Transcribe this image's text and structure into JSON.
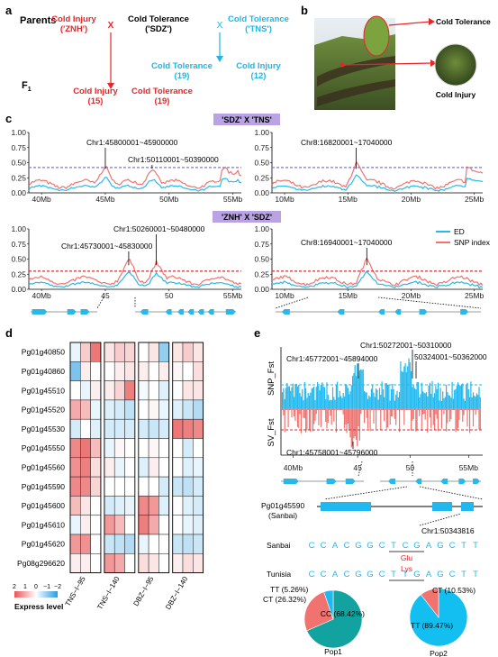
{
  "panel_a": {
    "letter": "a",
    "parents_label": "Parents",
    "p1": "Cold Injury",
    "p1_name": "('ZNH')",
    "p2": "Cold Tolerance",
    "p2_name": "('SDZ')",
    "p3": "Cold Tolerance",
    "p3_name": "('TNS')",
    "cross_mark": "X",
    "f1_label": "F",
    "f1_sub": "1",
    "off_left_1": "Cold Injury",
    "off_left_1_n": "(15)",
    "off_left_2": "Cold Tolerance",
    "off_left_2_n": "(19)",
    "off_right_1": "Cold Tolerance",
    "off_right_1_n": "(19)",
    "off_right_2": "Cold Injury",
    "off_right_2_n": "(12)",
    "red": "#e8262a",
    "blue": "#1fb6e6"
  },
  "panel_b": {
    "letter": "b",
    "label_top": "Cold Tolerance",
    "label_bottom": "Cold Injury"
  },
  "panel_c": {
    "letter": "c",
    "cross1": "'SDZ'  X  'TNS'",
    "cross2": "'ZNH'  X  'SDZ'",
    "header_color": "#b9a3e3",
    "yticks": [
      "0.00",
      "0.25",
      "0.50",
      "0.75",
      "1.00"
    ],
    "legend_ed": "ED",
    "legend_snp": "SNP index",
    "ed_color": "#2ab8e8",
    "snp_color": "#f0736f",
    "top_left": {
      "xticks": [
        "40Mb",
        "45Mb",
        "50Mb",
        "55Mb"
      ],
      "peaks": [
        "Chr1:45800001~45900000",
        "Chr1:50110001~50390000"
      ]
    },
    "top_right": {
      "xticks": [
        "10Mb",
        "15Mb",
        "20Mb",
        "25Mb"
      ],
      "peaks": [
        "Chr8:16820001~17040000"
      ]
    },
    "bottom_left": {
      "xticks": [
        "40Mb",
        "45",
        "50",
        "55Mb"
      ],
      "peaks": [
        "Chr1:45730001~45830000",
        "Chr1:50260001~50480000"
      ]
    },
    "bottom_right": {
      "xticks": [
        "10Mb",
        "15Mb",
        "20Mb",
        "25Mb"
      ],
      "peaks": [
        "Chr8:16940001~17040000"
      ]
    }
  },
  "panel_d": {
    "letter": "d",
    "genes": [
      "Pg01g40850",
      "Pg01g40860",
      "Pg01g45510",
      "Pg01g45520",
      "Pg01g45530",
      "Pg01g45550",
      "Pg01g45560",
      "Pg01g45590",
      "Pg01g45600",
      "Pg01g45610",
      "Pg01g45620",
      "Pg08g296620"
    ],
    "groups": [
      "TNS−I−95",
      "TNS−I−140",
      "DBZ−I−95",
      "DBZ−I−140"
    ],
    "legend_ticks": [
      "2",
      "1",
      "0",
      "−1",
      "−2"
    ],
    "legend_title": "Express level",
    "values": [
      [
        [
          -0.2,
          0.6,
          1.6
        ],
        [
          0.3,
          0.6,
          0.5
        ],
        [
          0.0,
          0.3,
          -1.0
        ],
        [
          0.3,
          0.6,
          0.3
        ]
      ],
      [
        [
          -1.2,
          0.2,
          0.0
        ],
        [
          0.0,
          0.2,
          0.3
        ],
        [
          0.2,
          0.0,
          0.2
        ],
        [
          0.1,
          0.0,
          0.4
        ]
      ],
      [
        [
          0.0,
          -0.2,
          0.2
        ],
        [
          0.2,
          0.5,
          1.5
        ],
        [
          -0.1,
          0.0,
          -0.3
        ],
        [
          0.0,
          0.3,
          0.3
        ]
      ],
      [
        [
          1.0,
          0.8,
          -0.2
        ],
        [
          -0.3,
          -0.4,
          -0.6
        ],
        [
          0.0,
          0.1,
          -0.2
        ],
        [
          -0.3,
          -0.5,
          -0.7
        ]
      ],
      [
        [
          -0.4,
          0.0,
          -0.3
        ],
        [
          -0.4,
          -0.4,
          -0.4
        ],
        [
          -0.4,
          -0.5,
          -0.4
        ],
        [
          1.6,
          1.5,
          1.4
        ]
      ],
      [
        [
          1.4,
          1.6,
          0.8
        ],
        [
          -0.2,
          0.1,
          0.0
        ],
        [
          0.0,
          0.1,
          0.0
        ],
        [
          0.0,
          -0.4,
          0.0
        ]
      ],
      [
        [
          1.3,
          1.5,
          0.4
        ],
        [
          0.2,
          -0.2,
          0.0
        ],
        [
          -0.3,
          0.2,
          0.0
        ],
        [
          0.0,
          -0.3,
          -0.2
        ]
      ],
      [
        [
          1.4,
          1.4,
          0.5
        ],
        [
          0.0,
          0.0,
          0.0
        ],
        [
          0.0,
          0.0,
          -0.4
        ],
        [
          -0.5,
          -0.6,
          -0.4
        ]
      ],
      [
        [
          0.8,
          0.3,
          0.0
        ],
        [
          -0.4,
          -0.3,
          -0.2
        ],
        [
          1.4,
          1.2,
          -0.3
        ],
        [
          0.0,
          -0.3,
          -0.4
        ]
      ],
      [
        [
          -0.2,
          0.2,
          0.0
        ],
        [
          1.2,
          0.8,
          0.0
        ],
        [
          1.5,
          1.0,
          0.0
        ],
        [
          0.0,
          -0.2,
          -0.3
        ]
      ],
      [
        [
          1.2,
          1.3,
          0.0
        ],
        [
          -0.5,
          -0.6,
          -0.7
        ],
        [
          -0.2,
          0.0,
          0.0
        ],
        [
          -0.5,
          -0.6,
          -0.5
        ]
      ],
      [
        [
          0.2,
          0.2,
          0.0
        ],
        [
          1.2,
          1.0,
          0.0
        ],
        [
          0.4,
          0.3,
          0.0
        ],
        [
          0.2,
          0.4,
          0.3
        ]
      ]
    ]
  },
  "panel_e": {
    "letter": "e",
    "snp_label": "SNP_Fst",
    "sv_label": "SV_Fst",
    "peaks_top": [
      "Chr1:45772001~45894000",
      "Chr1:50272001~50310000",
      "50324001~50362000"
    ],
    "peak_bottom": "Chr1:45758001~45796000",
    "xticks": [
      "40Mb",
      "45",
      "50",
      "55Mb"
    ],
    "gene_name": "Pg01g45590",
    "gene_sub": "(Sanbai)",
    "snp_pos": "Chr1:50343816",
    "seq_label_1": "Sanbai",
    "seq_label_2": "Tunisia",
    "seq_1": [
      "C",
      "C",
      "A",
      "C",
      "G",
      "G",
      "C",
      "T",
      "C",
      "G",
      "A",
      "G",
      "C",
      "T",
      "T"
    ],
    "seq_2": [
      "C",
      "C",
      "A",
      "C",
      "G",
      "G",
      "C",
      "T",
      "T",
      "G",
      "A",
      "G",
      "C",
      "T",
      "T"
    ],
    "aa_1": "Glu",
    "aa_2": "Lys",
    "pie1": {
      "name": "Pop1",
      "slices": [
        {
          "label": "CC (68.42%)",
          "value": 68.42,
          "color": "#12a3a0"
        },
        {
          "label": "CT (26.32%)",
          "value": 26.32,
          "color": "#f0736f"
        },
        {
          "label": "TT (5.26%)",
          "value": 5.26,
          "color": "#20b8ee"
        }
      ]
    },
    "pie2": {
      "name": "Pop2",
      "slices": [
        {
          "label": "TT (89.47%)",
          "value": 89.47,
          "color": "#12bff0"
        },
        {
          "label": "CT (10.53%)",
          "value": 10.53,
          "color": "#f0736f"
        }
      ]
    }
  }
}
